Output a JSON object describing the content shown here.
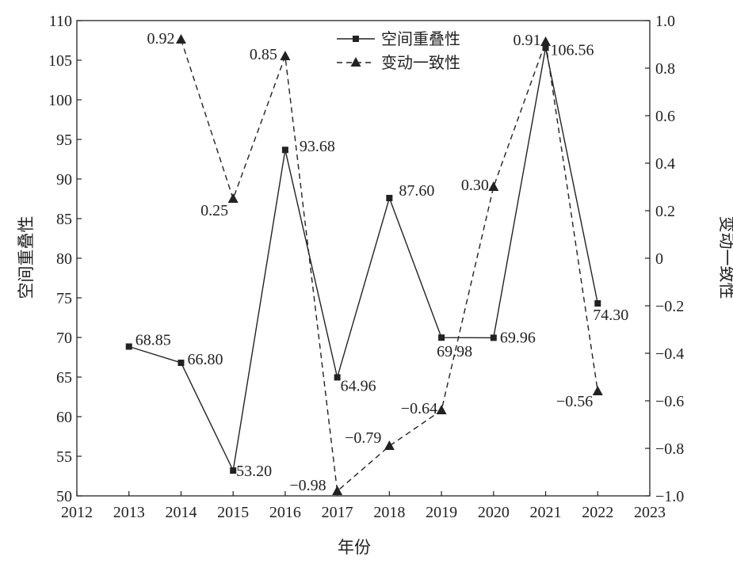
{
  "chart_data": {
    "type": "line",
    "x": [
      2013,
      2014,
      2015,
      2016,
      2017,
      2018,
      2019,
      2020,
      2021,
      2022
    ],
    "xlabel": "年份",
    "xlim": [
      2012,
      2023
    ],
    "xticks": [
      "2012",
      "2013",
      "2014",
      "2015",
      "2016",
      "2017",
      "2018",
      "2019",
      "2020",
      "2021",
      "2022",
      "2023"
    ],
    "y_left": {
      "label": "空间重叠性",
      "lim": [
        50,
        110
      ],
      "ticks": [
        "50",
        "55",
        "60",
        "65",
        "70",
        "75",
        "80",
        "85",
        "90",
        "95",
        "100",
        "105",
        "110"
      ]
    },
    "y_right": {
      "label": "变动一致性",
      "lim": [
        -1.0,
        1.0
      ],
      "ticks": [
        "−1.0",
        "−0.8",
        "−0.6",
        "−0.4",
        "−0.2",
        "0",
        "0.2",
        "0.4",
        "0.6",
        "0.8",
        "1.0"
      ]
    },
    "series": [
      {
        "name": "空间重叠性",
        "axis": "left",
        "line_style": "solid",
        "marker": "square",
        "points": [
          {
            "x": 2013,
            "y": 68.85,
            "label": "68.85"
          },
          {
            "x": 2014,
            "y": 66.8,
            "label": "66.80"
          },
          {
            "x": 2015,
            "y": 53.2,
            "label": "53.20"
          },
          {
            "x": 2016,
            "y": 93.68,
            "label": "93.68"
          },
          {
            "x": 2017,
            "y": 64.96,
            "label": "64.96"
          },
          {
            "x": 2018,
            "y": 87.6,
            "label": "87.60"
          },
          {
            "x": 2019,
            "y": 69.98,
            "label": "69.98"
          },
          {
            "x": 2020,
            "y": 69.96,
            "label": "69.96"
          },
          {
            "x": 2021,
            "y": 106.56,
            "label": "106.56"
          },
          {
            "x": 2022,
            "y": 74.3,
            "label": "74.30"
          }
        ]
      },
      {
        "name": "变动一致性",
        "axis": "right",
        "line_style": "dashed",
        "marker": "triangle",
        "points": [
          {
            "x": 2014,
            "y": 0.92,
            "label": "0.92"
          },
          {
            "x": 2015,
            "y": 0.25,
            "label": "0.25"
          },
          {
            "x": 2016,
            "y": 0.85,
            "label": "0.85"
          },
          {
            "x": 2017,
            "y": -0.98,
            "label": "−0.98"
          },
          {
            "x": 2018,
            "y": -0.79,
            "label": "−0.79"
          },
          {
            "x": 2019,
            "y": -0.64,
            "label": "−0.64"
          },
          {
            "x": 2020,
            "y": 0.3,
            "label": "0.30"
          },
          {
            "x": 2021,
            "y": 0.91,
            "label": "0.91"
          },
          {
            "x": 2022,
            "y": -0.56,
            "label": "−0.56"
          }
        ]
      }
    ],
    "legend": "top-center",
    "grid": false,
    "colors": {
      "line": "#222222",
      "background": "#ffffff"
    }
  }
}
